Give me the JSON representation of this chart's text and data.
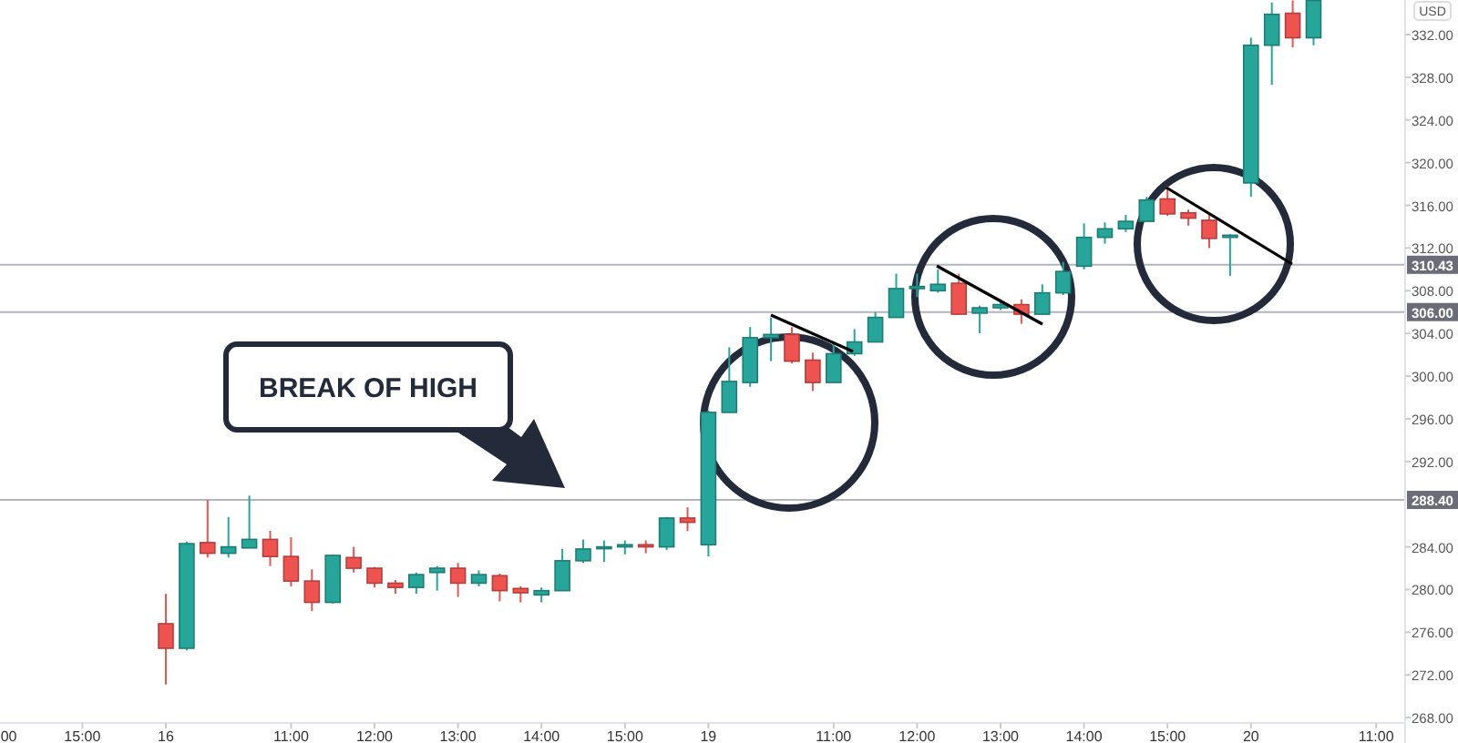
{
  "chart_data": {
    "type": "candlestick",
    "annotations": [
      "BREAK OF HIGH",
      "USD"
    ],
    "categories": [
      "00",
      null,
      null,
      null,
      "15:00",
      null,
      null,
      null,
      "16",
      null,
      null,
      null,
      null,
      null,
      "11:00",
      null,
      null,
      null,
      "12:00",
      null,
      null,
      null,
      "13:00",
      null,
      null,
      null,
      "14:00",
      null,
      null,
      null,
      "15:00",
      null,
      null,
      null,
      "19",
      null,
      null,
      null,
      null,
      null,
      "11:00",
      null,
      null,
      null,
      "12:00",
      null,
      null,
      null,
      "13:00",
      null,
      null,
      null,
      "14:00",
      null,
      null,
      null,
      "15:00",
      null,
      null,
      null,
      "20",
      null,
      null,
      null,
      null,
      null,
      "11:00"
    ],
    "ohlc": [
      null,
      null,
      null,
      null,
      null,
      null,
      null,
      null,
      [
        276.8,
        279.6,
        271.1,
        274.5
      ],
      [
        274.5,
        284.5,
        274.3,
        284.3
      ],
      [
        284.4,
        288.4,
        283.0,
        283.4
      ],
      [
        283.4,
        286.8,
        283.0,
        284.0
      ],
      [
        283.9,
        288.8,
        283.9,
        284.7
      ],
      [
        284.7,
        285.5,
        282.2,
        283.1
      ],
      [
        283.1,
        284.9,
        280.3,
        280.8
      ],
      [
        280.8,
        281.9,
        278.0,
        278.8
      ],
      [
        278.8,
        283.3,
        278.7,
        283.2
      ],
      [
        283.0,
        284.0,
        281.6,
        282.0
      ],
      [
        282.0,
        282.1,
        280.2,
        280.6
      ],
      [
        280.6,
        280.9,
        279.6,
        280.2
      ],
      [
        280.2,
        281.6,
        279.6,
        281.4
      ],
      [
        281.6,
        282.2,
        279.9,
        282.0
      ],
      [
        282.0,
        282.5,
        279.3,
        280.6
      ],
      [
        280.6,
        281.8,
        280.3,
        281.4
      ],
      [
        281.3,
        281.5,
        278.9,
        279.9
      ],
      [
        280.1,
        280.3,
        278.8,
        279.7
      ],
      [
        279.5,
        280.2,
        278.8,
        279.9
      ],
      [
        279.9,
        283.8,
        279.9,
        282.7
      ],
      [
        282.7,
        284.7,
        282.5,
        283.8
      ],
      [
        283.9,
        284.6,
        282.6,
        284.0
      ],
      [
        284.0,
        284.6,
        283.3,
        284.2
      ],
      [
        284.2,
        284.6,
        283.4,
        284.0
      ],
      [
        284.0,
        286.8,
        283.7,
        286.7
      ],
      [
        286.7,
        287.7,
        285.5,
        286.3
      ],
      [
        284.2,
        296.8,
        283.1,
        296.6
      ],
      [
        296.6,
        302.7,
        296.6,
        299.5
      ],
      [
        299.4,
        304.6,
        299.0,
        303.6
      ],
      [
        303.6,
        305.5,
        301.4,
        303.9
      ],
      [
        303.9,
        304.6,
        301.2,
        301.4
      ],
      [
        301.5,
        302.2,
        298.6,
        299.4
      ],
      [
        299.4,
        303.2,
        299.4,
        302.1
      ],
      [
        302.1,
        304.4,
        301.9,
        303.2
      ],
      [
        303.2,
        306.0,
        303.2,
        305.5
      ],
      [
        305.5,
        309.6,
        305.5,
        308.2
      ],
      [
        308.2,
        309.6,
        307.4,
        308.4
      ],
      [
        308.0,
        310.0,
        307.8,
        308.6
      ],
      [
        308.7,
        309.6,
        305.8,
        305.8
      ],
      [
        305.9,
        306.6,
        304.0,
        306.4
      ],
      [
        306.4,
        307.2,
        306.2,
        306.7
      ],
      [
        306.7,
        307.2,
        304.9,
        305.8
      ],
      [
        305.8,
        308.6,
        305.8,
        307.8
      ],
      [
        307.8,
        310.7,
        307.6,
        309.8
      ],
      [
        310.3,
        314.3,
        310.0,
        313.0
      ],
      [
        313.0,
        314.4,
        312.4,
        313.8
      ],
      [
        313.8,
        315.1,
        313.5,
        314.5
      ],
      [
        314.5,
        316.8,
        314.5,
        316.5
      ],
      [
        316.6,
        317.8,
        315.0,
        315.2
      ],
      [
        315.3,
        315.6,
        314.1,
        314.8
      ],
      [
        314.6,
        315.1,
        312.0,
        312.9
      ],
      [
        313.0,
        313.3,
        309.4,
        313.2
      ],
      [
        318.1,
        331.7,
        316.8,
        331.0
      ],
      [
        331.0,
        335.0,
        327.3,
        333.9
      ],
      [
        334.0,
        335.2,
        330.8,
        331.7
      ],
      [
        331.7,
        335.2,
        331.0,
        335.2
      ],
      null,
      null,
      null
    ],
    "colors": [
      null,
      null,
      null,
      null,
      null,
      null,
      null,
      null,
      "#ef5350",
      "#26a69a",
      "#ef5350",
      "#26a69a",
      "#26a69a",
      "#ef5350",
      "#ef5350",
      "#ef5350",
      "#26a69a",
      "#ef5350",
      "#ef5350",
      "#ef5350",
      "#26a69a",
      "#26a69a",
      "#ef5350",
      "#26a69a",
      "#ef5350",
      "#ef5350",
      "#26a69a",
      "#26a69a",
      "#26a69a",
      "#26a69a",
      "#26a69a",
      "#ef5350",
      "#26a69a",
      "#ef5350",
      "#26a69a",
      "#26a69a",
      "#26a69a",
      "#26a69a",
      "#ef5350",
      "#ef5350",
      "#26a69a",
      "#26a69a",
      "#26a69a",
      "#26a69a",
      "#26a69a",
      "#26a69a",
      "#ef5350",
      "#26a69a",
      "#26a69a",
      "#ef5350",
      "#26a69a",
      "#26a69a",
      "#26a69a",
      "#26a69a",
      "#26a69a",
      "#26a69a",
      "#ef5350",
      "#ef5350",
      "#ef5350",
      "#26a69a",
      "#26a69a",
      "#26a69a",
      "#ef5350",
      "#26a69a",
      null,
      null,
      null
    ],
    "ylim": [
      267.5,
      335.24
    ],
    "yticks": [
      {
        "value": 268,
        "label": "268.00"
      },
      {
        "value": 272,
        "label": "272.00"
      },
      {
        "value": 276,
        "label": "276.00"
      },
      {
        "value": 280,
        "label": "280.00"
      },
      {
        "value": 284,
        "label": "284.00"
      },
      {
        "value": 292,
        "label": "292.00"
      },
      {
        "value": 296,
        "label": "296.00"
      },
      {
        "value": 300,
        "label": "300.00"
      },
      {
        "value": 304,
        "label": "304.00"
      },
      {
        "value": 308,
        "label": "308.00"
      },
      {
        "value": 312,
        "label": "312.00"
      },
      {
        "value": 316,
        "label": "316.00"
      },
      {
        "value": 320,
        "label": "320.00"
      },
      {
        "value": 324,
        "label": "324.00"
      },
      {
        "value": 328,
        "label": "328.00"
      },
      {
        "value": 332,
        "label": "332.00"
      }
    ],
    "ref_lines": [
      {
        "axis": "y",
        "value": 288.4,
        "label": "288.40",
        "color": "#b2b5be"
      },
      {
        "axis": "y",
        "value": 306.0,
        "label": "306.00",
        "color": "#b2b5be"
      },
      {
        "axis": "y",
        "value": 310.43,
        "label": "310.43",
        "color": "#b2b5be"
      }
    ],
    "grid": false
  }
}
